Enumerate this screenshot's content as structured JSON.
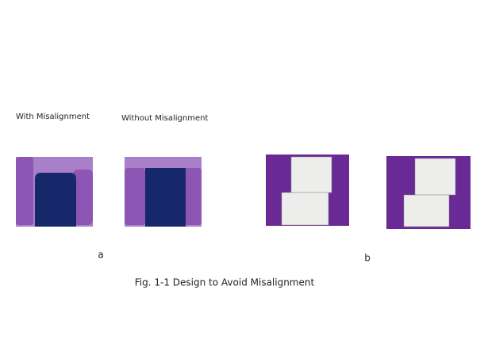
{
  "panel_a": {
    "left_label": "With Misalignment",
    "right_label": "Without Misalignment",
    "letter": "a"
  },
  "panel_b": {
    "letter": "b"
  },
  "caption": "Fig. 1-1 Design to Avoid Misalignment"
}
